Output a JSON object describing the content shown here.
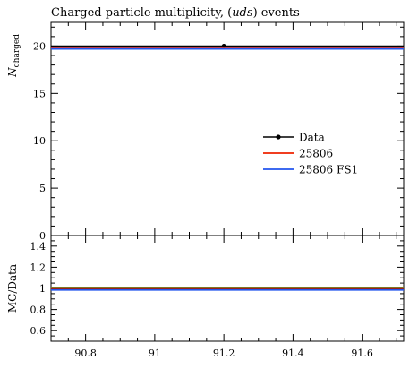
{
  "chart_data": [
    {
      "type": "line",
      "title": "Charged particle multiplicity, (uds) events",
      "title_parts": {
        "pre": "Charged particle multiplicity, (",
        "italic": "uds",
        "post": ") events"
      },
      "ylabel": {
        "main": "N",
        "sub": "charged"
      },
      "xlim": [
        90.7,
        91.72
      ],
      "ylim": [
        0,
        22.5
      ],
      "yticks": [
        0,
        5,
        10,
        15,
        20
      ],
      "ytick_labels": [
        "0",
        "5",
        "10",
        "15",
        "20"
      ],
      "legend_position": "center-right",
      "series": [
        {
          "name": "Data",
          "color": "#000000",
          "marker": "circle",
          "x": [
            91.2
          ],
          "y": [
            20.0
          ],
          "line": [
            20.0,
            20.0
          ]
        },
        {
          "name": "25806",
          "color": "#ee2200",
          "line": [
            19.85,
            19.85
          ]
        },
        {
          "name": "25806 FS1",
          "color": "#2255ee",
          "line": [
            19.7,
            19.7
          ]
        }
      ]
    },
    {
      "type": "line",
      "ylabel": "MC/Data",
      "xlabel": "",
      "xlim": [
        90.7,
        91.72
      ],
      "ylim": [
        0.5,
        1.5
      ],
      "yticks": [
        0.6,
        0.8,
        1,
        1.2,
        1.4
      ],
      "ytick_labels": [
        "0.6",
        "0.8",
        "1",
        "1.2",
        "1.4"
      ],
      "xticks": [
        90.8,
        91,
        91.2,
        91.4,
        91.6
      ],
      "xtick_labels": [
        "90.8",
        "91",
        "91.2",
        "91.4",
        "91.6"
      ],
      "band": {
        "color": "#ffee44",
        "y": [
          0.995,
          1.005
        ]
      },
      "series": [
        {
          "name": "Data",
          "color": "#000000",
          "line": [
            1.0,
            1.0
          ]
        },
        {
          "name": "25806",
          "color": "#ee2200",
          "line": [
            0.99,
            0.99
          ]
        },
        {
          "name": "25806 FS1",
          "color": "#2255ee",
          "line": [
            0.985,
            0.985
          ]
        }
      ]
    }
  ]
}
